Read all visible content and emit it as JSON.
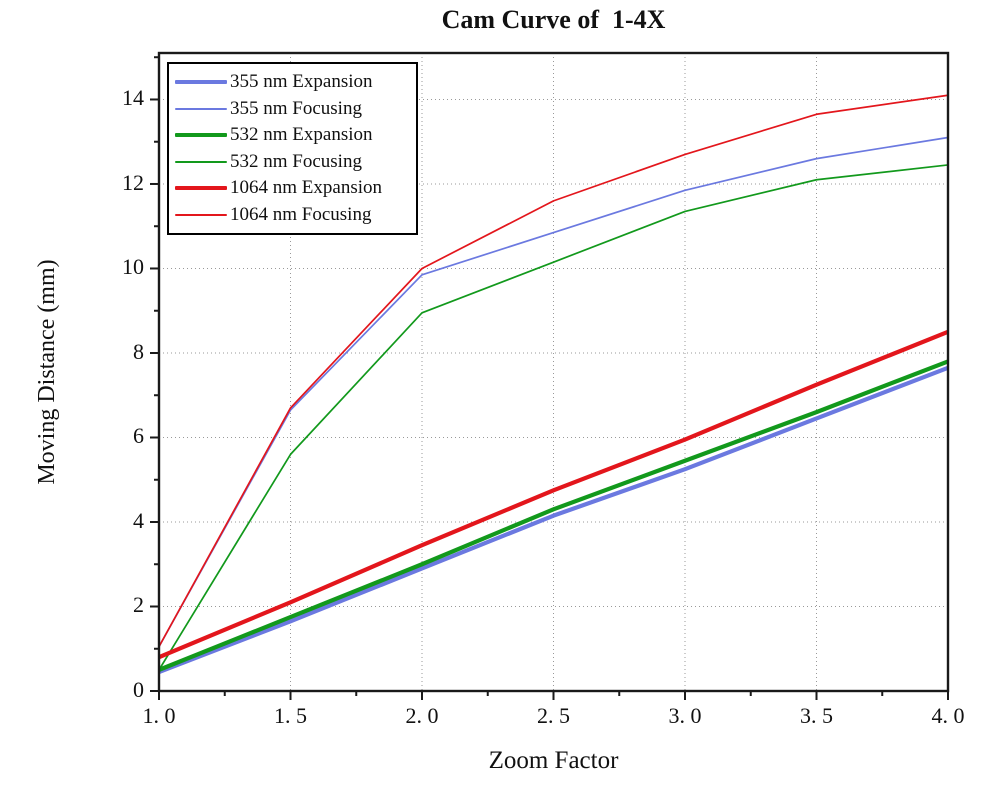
{
  "chart_data": {
    "type": "line",
    "title": "Cam Curve of  1-4X",
    "xlabel": "Zoom Factor",
    "ylabel": "Moving Distance (mm)",
    "x": [
      1.0,
      1.5,
      2.0,
      2.5,
      3.0,
      3.5,
      4.0
    ],
    "x_tick_labels": [
      "1. 0",
      "1. 5",
      "2. 0",
      "2. 5",
      "3. 0",
      "3. 5",
      "4. 0"
    ],
    "y_ticks": [
      0,
      2,
      4,
      6,
      8,
      10,
      12,
      14
    ],
    "xlim": [
      1.0,
      4.0
    ],
    "ylim": [
      0,
      15.1
    ],
    "x_minor_ticks": [
      1.25,
      1.75,
      2.25,
      2.75,
      3.25,
      3.75
    ],
    "y_minor_ticks": [
      1,
      3,
      5,
      7,
      9,
      11,
      13,
      15
    ],
    "grid": "dotted on both major axes",
    "legend_position": "top-left",
    "axis_color": "#1a1a1a",
    "grid_color": "#999999",
    "background_color": "#ffffff",
    "series": [
      {
        "name": "355 nm Expansion",
        "color": "#6b79e0",
        "width": 4.2,
        "values": [
          0.45,
          1.65,
          2.9,
          4.15,
          5.25,
          6.45,
          7.65
        ]
      },
      {
        "name": "355 nm Focusing",
        "color": "#6b79e0",
        "width": 1.7,
        "values": [
          1.05,
          6.65,
          9.85,
          10.85,
          11.85,
          12.6,
          13.1
        ]
      },
      {
        "name": "532 nm Expansion",
        "color": "#12991c",
        "width": 4.2,
        "values": [
          0.5,
          1.75,
          3.0,
          4.3,
          5.45,
          6.6,
          7.8
        ]
      },
      {
        "name": "532 nm Focusing",
        "color": "#12991c",
        "width": 1.7,
        "values": [
          0.5,
          5.6,
          8.95,
          10.15,
          11.35,
          12.1,
          12.45
        ]
      },
      {
        "name": "1064 nm Expansion",
        "color": "#e3161c",
        "width": 4.2,
        "values": [
          0.8,
          2.1,
          3.45,
          4.75,
          5.95,
          7.25,
          8.5
        ]
      },
      {
        "name": "1064 nm Focusing",
        "color": "#e3161c",
        "width": 1.7,
        "values": [
          1.05,
          6.7,
          10.0,
          11.6,
          12.7,
          13.65,
          14.1
        ]
      }
    ]
  }
}
